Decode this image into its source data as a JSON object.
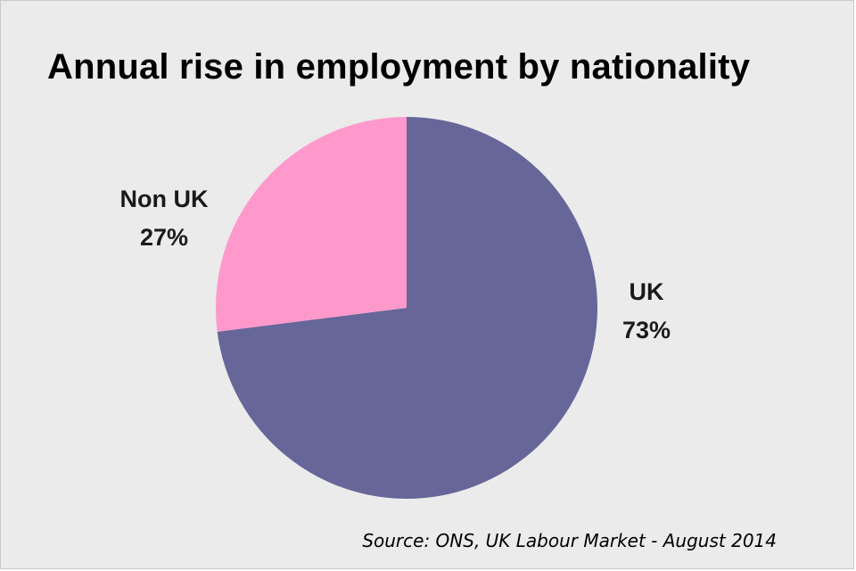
{
  "chart_data": {
    "type": "pie",
    "title": "Annual rise in employment by nationality",
    "source": "Source: ONS, UK Labour Market - August 2014",
    "slices": [
      {
        "name": "UK",
        "value": 73,
        "label": "73%",
        "color": "#666699"
      },
      {
        "name": "Non UK",
        "value": 27,
        "label": "27%",
        "color": "#ff99cc"
      }
    ],
    "start_angle_deg": 0,
    "direction": "clockwise",
    "legend": "none",
    "data_labels": "outside"
  }
}
